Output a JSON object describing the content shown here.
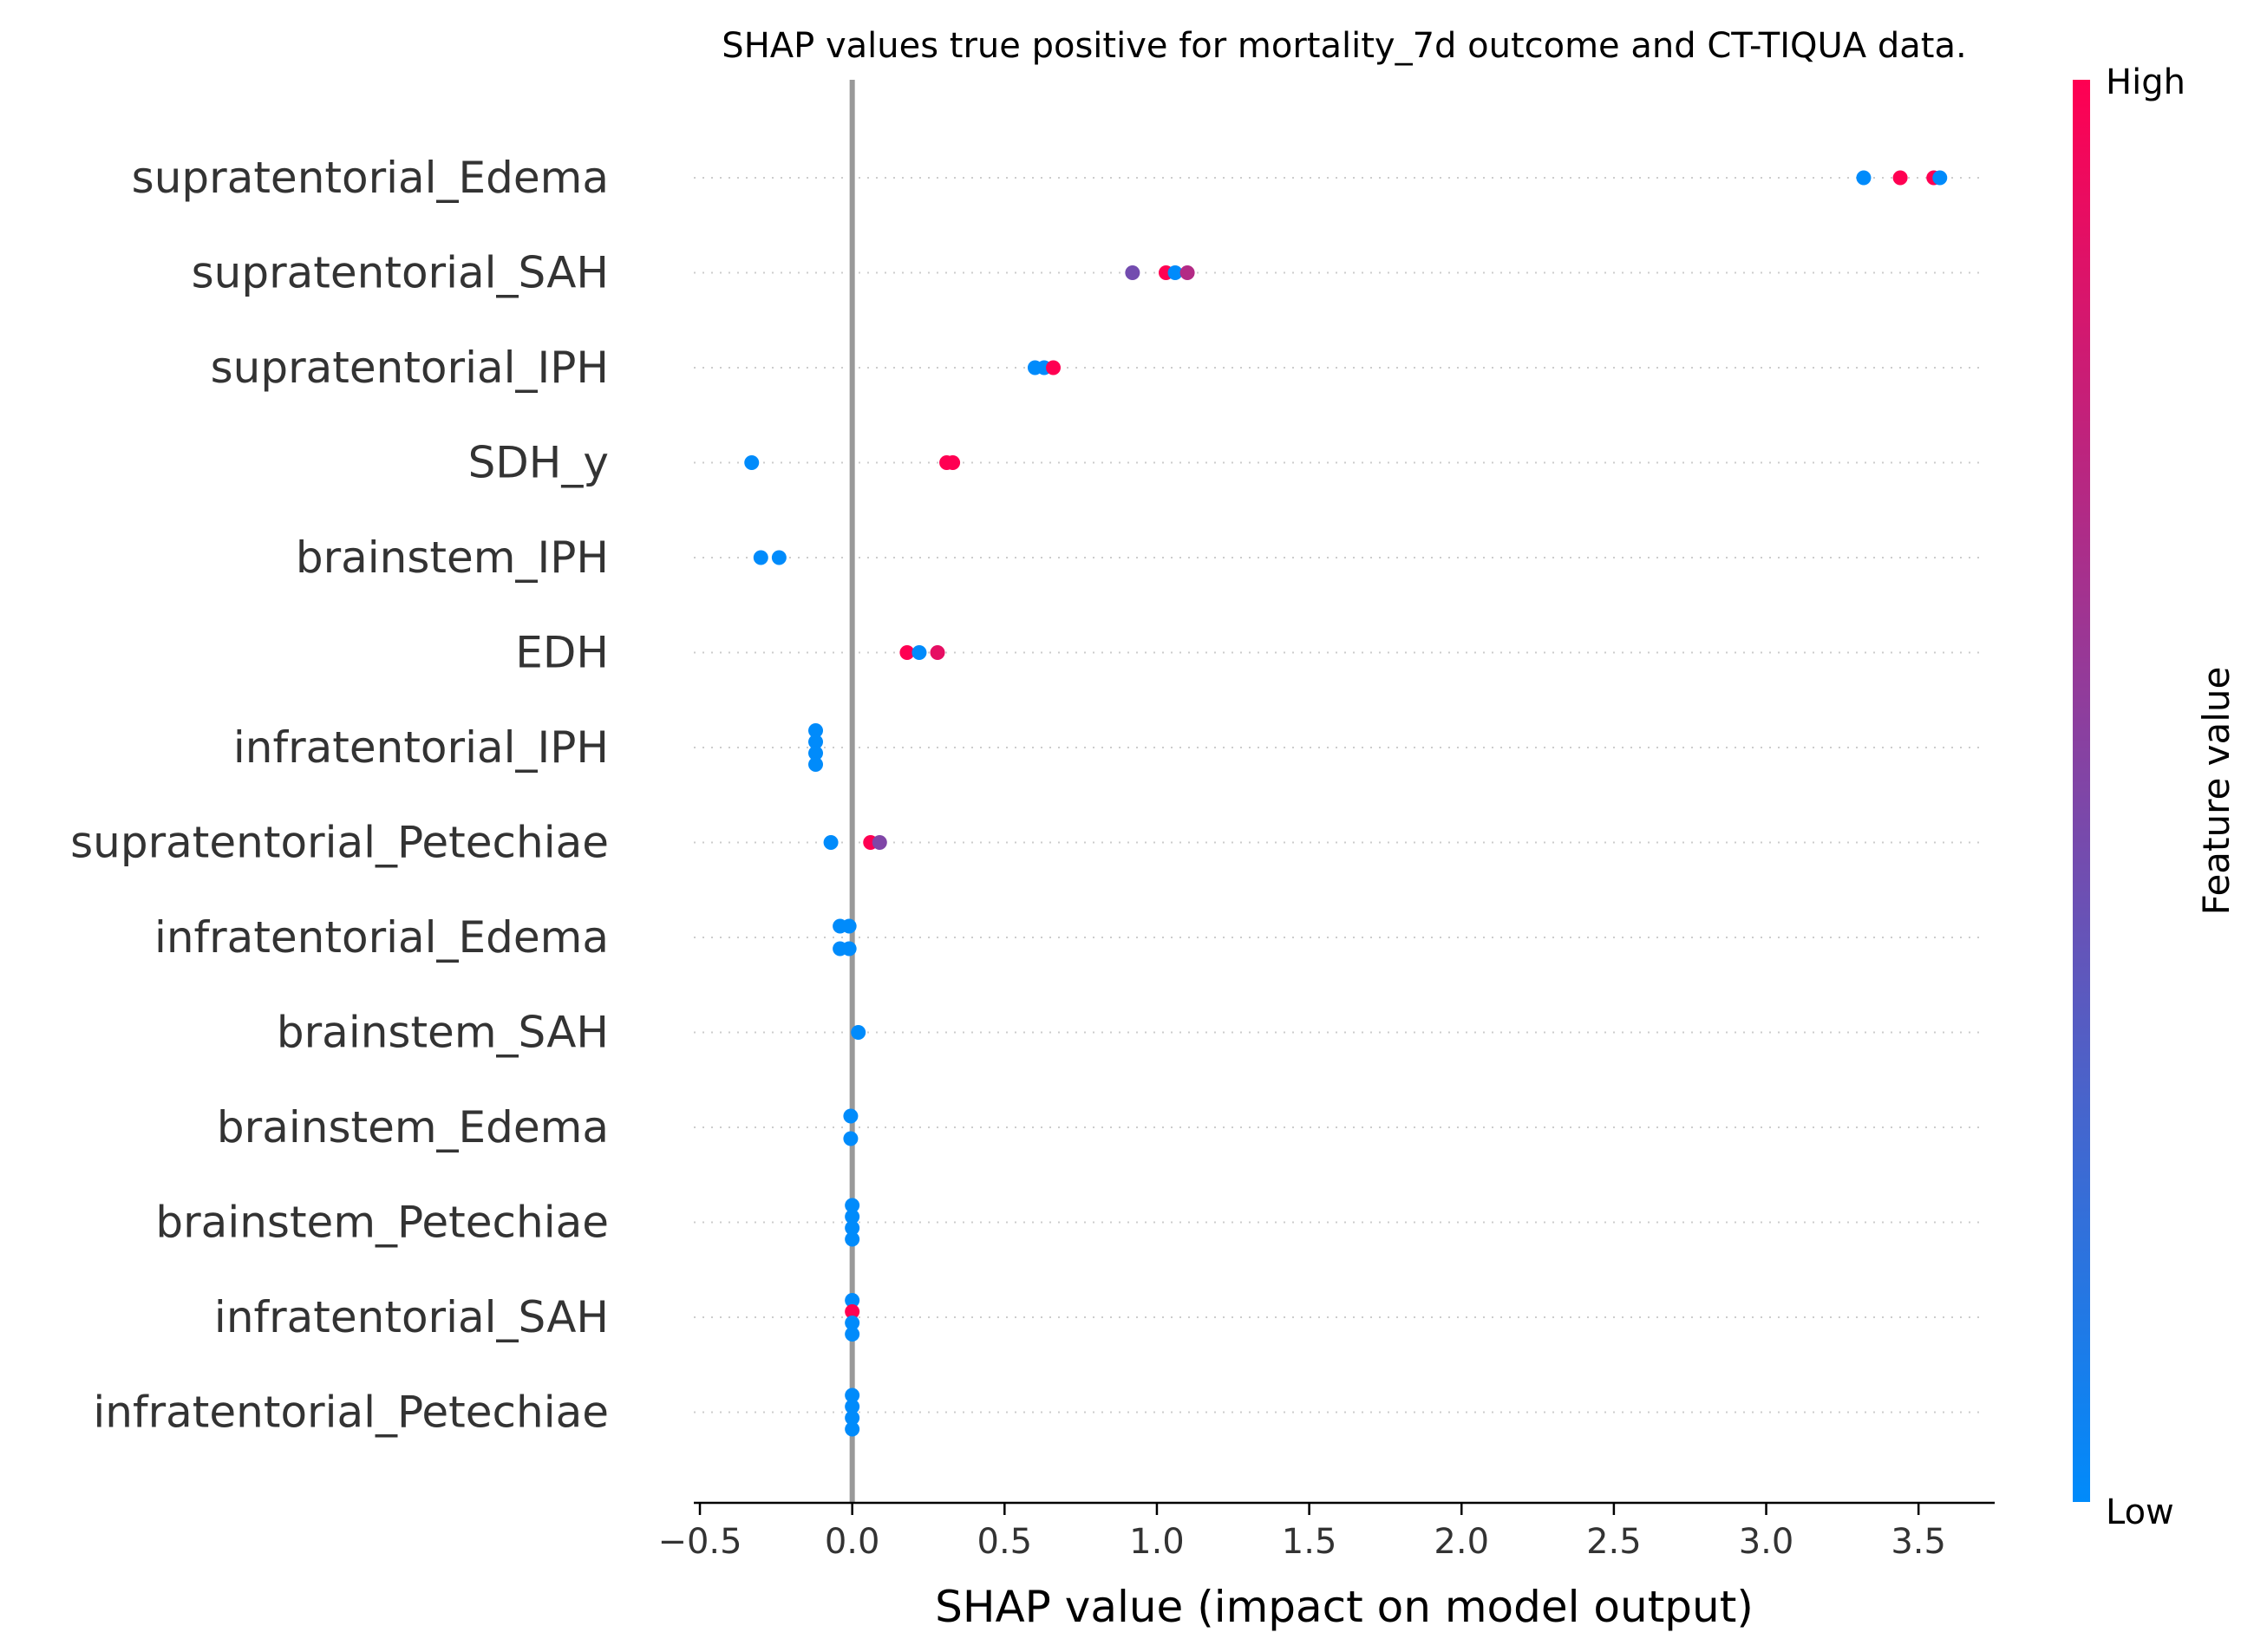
{
  "chart_data": {
    "type": "scatter",
    "title": "SHAP values true positive for mortality_7d outcome and CT-TIQUA data.",
    "xlabel": "SHAP value (impact on model output)",
    "ylabel": "",
    "xlim": [
      -0.52,
      3.75
    ],
    "xticks": [
      -0.5,
      0.0,
      0.5,
      1.0,
      1.5,
      2.0,
      2.5,
      3.0,
      3.5
    ],
    "xtick_labels": [
      "−0.5",
      "0.0",
      "0.5",
      "1.0",
      "1.5",
      "2.0",
      "2.5",
      "3.0",
      "3.5"
    ],
    "zero_line": 0,
    "grid": "dotted horizontal guides per feature",
    "colorbar": {
      "title": "Feature value",
      "high_label": "High",
      "low_label": "Low",
      "low_color": "#008bfb",
      "high_color": "#ff0052",
      "placement": "right"
    },
    "features": [
      {
        "name": "supratentorial_Edema",
        "points": [
          {
            "x": 3.32,
            "v": 0.0,
            "dy": 0
          },
          {
            "x": 3.44,
            "v": 1.0,
            "dy": 0
          },
          {
            "x": 3.55,
            "v": 1.0,
            "dy": 0
          },
          {
            "x": 3.57,
            "v": 0.0,
            "dy": 0
          }
        ]
      },
      {
        "name": "supratentorial_SAH",
        "points": [
          {
            "x": 0.92,
            "v": 0.45,
            "dy": 0
          },
          {
            "x": 1.03,
            "v": 1.0,
            "dy": 0
          },
          {
            "x": 1.06,
            "v": 0.0,
            "dy": 0
          },
          {
            "x": 1.1,
            "v": 0.7,
            "dy": 0
          }
        ]
      },
      {
        "name": "supratentorial_IPH",
        "points": [
          {
            "x": 0.6,
            "v": 0.0,
            "dy": 0
          },
          {
            "x": 0.63,
            "v": 0.0,
            "dy": 0
          },
          {
            "x": 0.66,
            "v": 1.0,
            "dy": 0
          }
        ]
      },
      {
        "name": "SDH_y",
        "points": [
          {
            "x": -0.33,
            "v": 0.0,
            "dy": 0
          },
          {
            "x": 0.31,
            "v": 1.0,
            "dy": 0
          },
          {
            "x": 0.33,
            "v": 1.0,
            "dy": 0
          }
        ]
      },
      {
        "name": "brainstem_IPH",
        "points": [
          {
            "x": -0.3,
            "v": 0.0,
            "dy": 0
          },
          {
            "x": -0.24,
            "v": 0.0,
            "dy": 0
          }
        ]
      },
      {
        "name": "EDH",
        "points": [
          {
            "x": 0.18,
            "v": 1.0,
            "dy": 0
          },
          {
            "x": 0.22,
            "v": 0.0,
            "dy": 0
          },
          {
            "x": 0.28,
            "v": 0.9,
            "dy": 0
          }
        ]
      },
      {
        "name": "infratentorial_IPH",
        "points": [
          {
            "x": -0.12,
            "v": 0.0,
            "dy": -1.5
          },
          {
            "x": -0.12,
            "v": 0.0,
            "dy": -0.5
          },
          {
            "x": -0.12,
            "v": 0.0,
            "dy": 0.5
          },
          {
            "x": -0.12,
            "v": 0.0,
            "dy": 1.5
          }
        ]
      },
      {
        "name": "supratentorial_Petechiae",
        "points": [
          {
            "x": -0.07,
            "v": 0.0,
            "dy": 0
          },
          {
            "x": 0.06,
            "v": 1.0,
            "dy": 0
          },
          {
            "x": 0.09,
            "v": 0.5,
            "dy": 0
          }
        ]
      },
      {
        "name": "infratentorial_Edema",
        "points": [
          {
            "x": -0.04,
            "v": 0.0,
            "dy": -1
          },
          {
            "x": -0.01,
            "v": 0.0,
            "dy": -1
          },
          {
            "x": -0.04,
            "v": 0.0,
            "dy": 1
          },
          {
            "x": -0.01,
            "v": 0.0,
            "dy": 1
          }
        ]
      },
      {
        "name": "brainstem_SAH",
        "points": [
          {
            "x": 0.02,
            "v": 0.0,
            "dy": 0
          }
        ]
      },
      {
        "name": "brainstem_Edema",
        "points": [
          {
            "x": -0.005,
            "v": 0.0,
            "dy": -1
          },
          {
            "x": -0.005,
            "v": 0.0,
            "dy": 1
          }
        ]
      },
      {
        "name": "brainstem_Petechiae",
        "points": [
          {
            "x": 0.0,
            "v": 0.0,
            "dy": -1.5
          },
          {
            "x": 0.0,
            "v": 0.0,
            "dy": -0.5
          },
          {
            "x": 0.0,
            "v": 0.0,
            "dy": 0.5
          },
          {
            "x": 0.0,
            "v": 0.0,
            "dy": 1.5
          }
        ]
      },
      {
        "name": "infratentorial_SAH",
        "points": [
          {
            "x": 0.0,
            "v": 0.0,
            "dy": -1.5
          },
          {
            "x": 0.0,
            "v": 1.0,
            "dy": -0.5
          },
          {
            "x": 0.0,
            "v": 0.0,
            "dy": 0.5
          },
          {
            "x": 0.0,
            "v": 0.0,
            "dy": 1.5
          }
        ]
      },
      {
        "name": "infratentorial_Petechiae",
        "points": [
          {
            "x": 0.0,
            "v": 0.0,
            "dy": -1.5
          },
          {
            "x": 0.0,
            "v": 0.0,
            "dy": -0.5
          },
          {
            "x": 0.0,
            "v": 0.0,
            "dy": 0.5
          },
          {
            "x": 0.0,
            "v": 0.0,
            "dy": 1.5
          }
        ]
      }
    ]
  }
}
